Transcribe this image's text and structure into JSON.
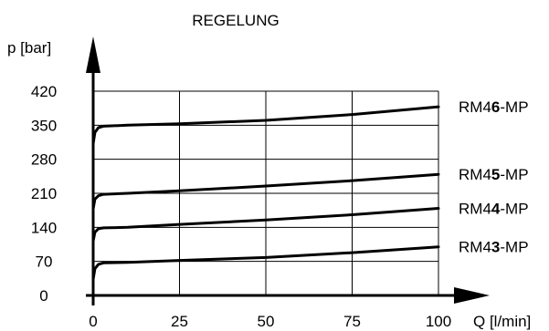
{
  "chart_data": {
    "type": "line",
    "title": "REGELUNG",
    "xlabel": "Q [l/min]",
    "ylabel": "p [bar]",
    "xlim": [
      0,
      100
    ],
    "ylim": [
      0,
      420
    ],
    "x_ticks": [
      0,
      25,
      50,
      75,
      100
    ],
    "y_ticks": [
      0,
      70,
      140,
      210,
      280,
      350,
      420
    ],
    "grid": true,
    "series": [
      {
        "name": "RM46-MP",
        "name_parts": [
          "RM4",
          "6",
          "-MP"
        ],
        "points": [
          [
            0,
            312
          ],
          [
            0.5,
            335
          ],
          [
            1.5,
            345
          ],
          [
            3,
            348
          ],
          [
            10,
            350
          ],
          [
            25,
            353
          ],
          [
            50,
            360
          ],
          [
            75,
            372
          ],
          [
            100,
            388
          ]
        ]
      },
      {
        "name": "RM45-MP",
        "name_parts": [
          "RM4",
          "5",
          "-MP"
        ],
        "points": [
          [
            0,
            178
          ],
          [
            0.5,
            198
          ],
          [
            1.5,
            205
          ],
          [
            3,
            208
          ],
          [
            10,
            210
          ],
          [
            25,
            215
          ],
          [
            50,
            225
          ],
          [
            75,
            236
          ],
          [
            100,
            249
          ]
        ]
      },
      {
        "name": "RM44-MP",
        "name_parts": [
          "RM4",
          "4",
          "-MP"
        ],
        "points": [
          [
            0,
            112
          ],
          [
            0.5,
            130
          ],
          [
            1.5,
            137
          ],
          [
            3,
            139
          ],
          [
            10,
            140
          ],
          [
            25,
            146
          ],
          [
            50,
            155
          ],
          [
            75,
            166
          ],
          [
            100,
            179
          ]
        ]
      },
      {
        "name": "RM43-MP",
        "name_parts": [
          "RM4",
          "3",
          "-MP"
        ],
        "points": [
          [
            0,
            33
          ],
          [
            0.5,
            55
          ],
          [
            1.5,
            64
          ],
          [
            3,
            67
          ],
          [
            10,
            68
          ],
          [
            25,
            72
          ],
          [
            50,
            78
          ],
          [
            75,
            88
          ],
          [
            100,
            100
          ]
        ]
      }
    ]
  }
}
